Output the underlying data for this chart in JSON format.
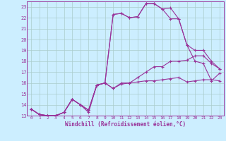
{
  "bg_color": "#cceeff",
  "grid_color": "#aacccc",
  "line_color": "#993399",
  "marker": "+",
  "markersize": 3,
  "linewidth": 0.8,
  "xlabel": "Windchill (Refroidissement éolien,°C)",
  "xlabel_fontsize": 5.5,
  "xtick_fontsize": 4.5,
  "ytick_fontsize": 5.0,
  "xlim": [
    -0.5,
    23.5
  ],
  "ylim": [
    13,
    23.5
  ],
  "yticks": [
    13,
    14,
    15,
    16,
    17,
    18,
    19,
    20,
    21,
    22,
    23
  ],
  "xticks": [
    0,
    1,
    2,
    3,
    4,
    5,
    6,
    7,
    8,
    9,
    10,
    11,
    12,
    13,
    14,
    15,
    16,
    17,
    18,
    19,
    20,
    21,
    22,
    23
  ],
  "series": [
    [
      13.6,
      13.1,
      13.0,
      13.0,
      13.3,
      14.5,
      14.0,
      13.3,
      15.8,
      16.0,
      15.5,
      15.9,
      16.0,
      16.1,
      16.2,
      16.2,
      16.3,
      16.4,
      16.5,
      16.1,
      16.2,
      16.3,
      16.3,
      16.2
    ],
    [
      13.6,
      13.1,
      13.0,
      13.0,
      13.3,
      14.5,
      14.0,
      13.5,
      15.8,
      16.0,
      22.3,
      22.4,
      22.0,
      22.1,
      23.3,
      23.3,
      22.8,
      22.9,
      21.9,
      19.5,
      19.0,
      19.0,
      18.0,
      17.3
    ],
    [
      13.6,
      13.1,
      13.0,
      13.0,
      13.3,
      14.5,
      14.0,
      13.5,
      15.8,
      16.0,
      22.3,
      22.4,
      22.0,
      22.1,
      23.3,
      23.3,
      22.8,
      21.9,
      21.9,
      19.5,
      18.0,
      17.8,
      16.2,
      16.9
    ],
    [
      13.6,
      13.1,
      13.0,
      13.0,
      13.3,
      14.5,
      14.0,
      13.5,
      15.8,
      16.0,
      15.5,
      16.0,
      16.0,
      16.5,
      17.0,
      17.5,
      17.5,
      18.0,
      18.0,
      18.1,
      18.5,
      18.5,
      17.8,
      17.3
    ]
  ]
}
